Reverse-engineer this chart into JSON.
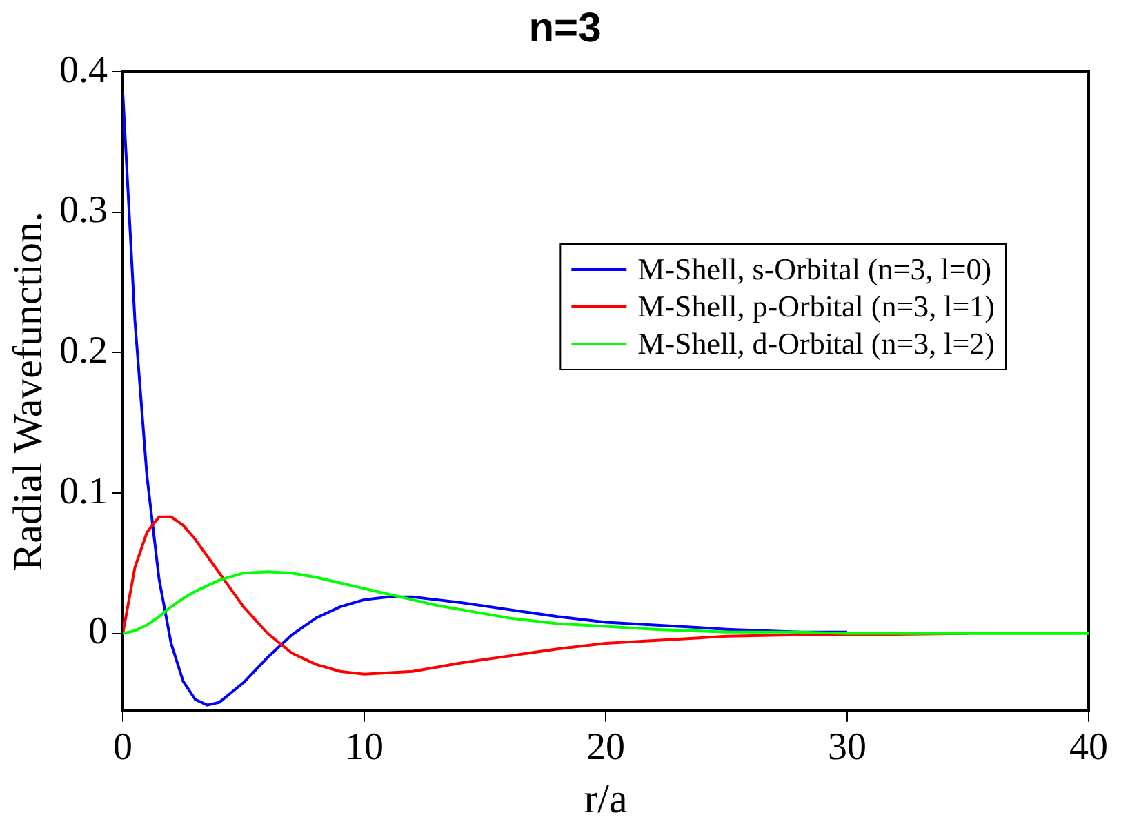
{
  "chart_data": {
    "type": "line",
    "title": "n=3",
    "xlabel": "r/a",
    "ylabel": "Radial Wavefunction.",
    "xlim": [
      0,
      40
    ],
    "xticks": [
      0,
      10,
      20,
      30,
      40
    ],
    "ylim": [
      -0.055,
      0.4
    ],
    "yticks": [
      0,
      0.1,
      0.2,
      0.3,
      0.4
    ],
    "grid": false,
    "legend": "top right",
    "marker": "none",
    "line_style": "solid",
    "series": [
      {
        "name": "M-Shell, s-Orbital (n=3, l=0)",
        "color": "#0000ff",
        "x": [
          0,
          0.5,
          1,
          1.5,
          2,
          2.5,
          3,
          3.5,
          4,
          5,
          6,
          7,
          8,
          9,
          10,
          11,
          12,
          13,
          14,
          16,
          18,
          20,
          22,
          25,
          28,
          30
        ],
        "values": [
          0.385,
          0.223,
          0.112,
          0.039,
          -0.007,
          -0.034,
          -0.047,
          -0.051,
          -0.049,
          -0.035,
          -0.017,
          -0.001,
          0.011,
          0.019,
          0.024,
          0.026,
          0.026,
          0.024,
          0.022,
          0.017,
          0.012,
          0.008,
          0.006,
          0.003,
          0.001,
          0.001
        ]
      },
      {
        "name": "M-Shell, p-Orbital (n=3, l=1)",
        "color": "#ff0000",
        "x": [
          0,
          0.5,
          1,
          1.5,
          2,
          2.5,
          3,
          3.5,
          4,
          5,
          6,
          7,
          8,
          9,
          10,
          11,
          12,
          13,
          14,
          16,
          18,
          20,
          22,
          25,
          28,
          30,
          35
        ],
        "values": [
          0,
          0.047,
          0.072,
          0.083,
          0.083,
          0.077,
          0.067,
          0.055,
          0.043,
          0.019,
          0,
          -0.014,
          -0.022,
          -0.027,
          -0.029,
          -0.028,
          -0.027,
          -0.024,
          -0.021,
          -0.016,
          -0.011,
          -0.007,
          -0.005,
          -0.002,
          -0.001,
          -0.001,
          0
        ]
      },
      {
        "name": "M-Shell, d-Orbital (n=3, l=2)",
        "color": "#00ff00",
        "x": [
          0,
          0.5,
          1,
          1.5,
          2,
          2.5,
          3,
          3.5,
          4,
          5,
          6,
          7,
          8,
          9,
          10,
          11,
          12,
          13,
          14,
          16,
          18,
          20,
          22,
          25,
          28,
          30,
          35,
          40
        ],
        "values": [
          0,
          0.002,
          0.006,
          0.012,
          0.019,
          0.025,
          0.03,
          0.034,
          0.038,
          0.043,
          0.044,
          0.043,
          0.04,
          0.036,
          0.032,
          0.028,
          0.024,
          0.02,
          0.017,
          0.011,
          0.007,
          0.005,
          0.003,
          0.001,
          0.001,
          0,
          0,
          0
        ]
      }
    ]
  }
}
